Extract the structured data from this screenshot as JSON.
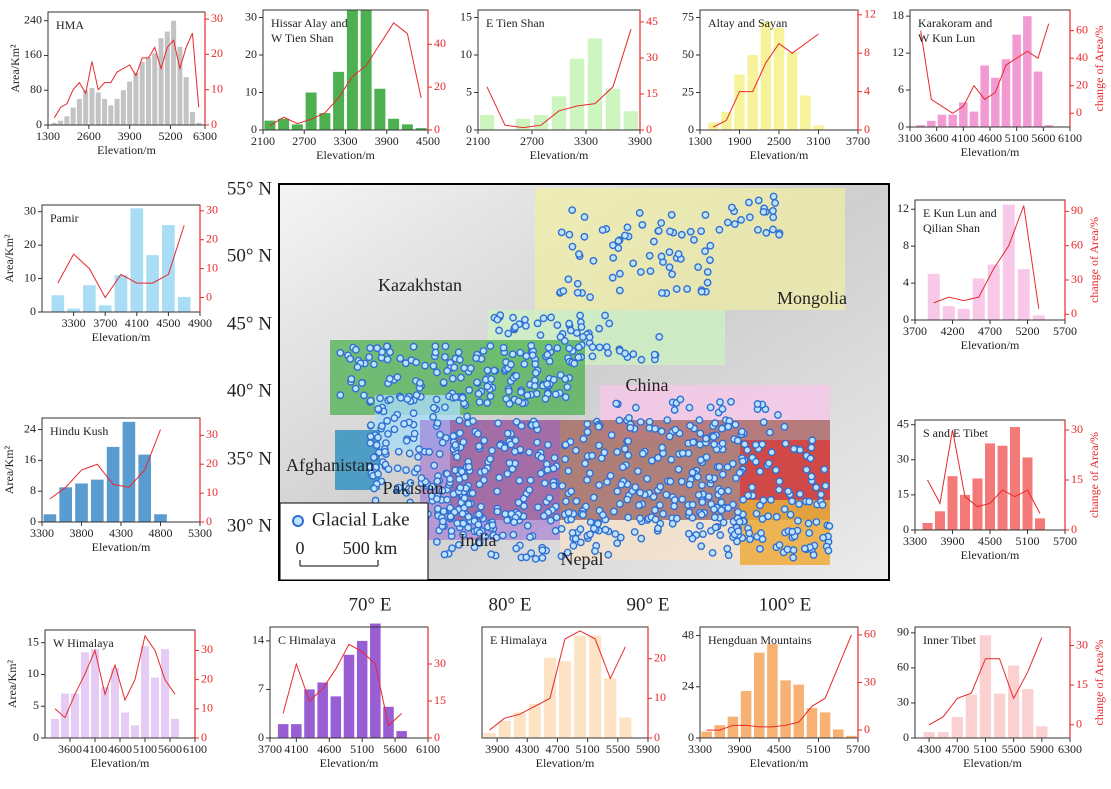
{
  "chart_data": [
    {
      "type": "bar_line",
      "title": [
        "HMA"
      ],
      "xlabel": "Elevation/m",
      "ylabel": "Area/Km²",
      "x": [
        1500,
        1700,
        1900,
        2100,
        2300,
        2500,
        2700,
        2900,
        3100,
        3300,
        3500,
        3700,
        3900,
        4100,
        4300,
        4500,
        4700,
        4900,
        5100,
        5300,
        5500,
        5700,
        5900,
        6100
      ],
      "xlim": [
        1300,
        6300
      ],
      "xticks": [
        1300,
        2600,
        3900,
        5200,
        6300
      ],
      "ylim": [
        0,
        260
      ],
      "yticks": [
        0,
        80,
        160,
        240
      ],
      "y2lim": [
        0,
        32
      ],
      "y2ticks": [
        0,
        10,
        20,
        30
      ],
      "series": [
        {
          "color": "#c3c3c3",
          "values": [
            5,
            10,
            20,
            40,
            60,
            80,
            85,
            75,
            60,
            45,
            60,
            80,
            100,
            120,
            145,
            155,
            165,
            200,
            215,
            240,
            180,
            110,
            30,
            5
          ]
        },
        {
          "color": "#e8292b",
          "axis": "y2",
          "values": [
            2,
            5,
            6,
            10,
            12,
            9,
            18,
            10,
            12,
            12,
            15,
            16,
            17,
            14,
            19,
            19,
            22,
            16,
            22,
            24,
            16,
            22,
            26,
            5
          ]
        }
      ]
    },
    {
      "type": "bar_line",
      "title": [
        "Hissar Alay and",
        "W Tien Shan"
      ],
      "xlabel": "Elevation/m",
      "x": [
        2200,
        2400,
        2600,
        2800,
        3000,
        3200,
        3400,
        3600,
        3800,
        4000,
        4200,
        4400
      ],
      "xlim": [
        2100,
        4500
      ],
      "xticks": [
        2100,
        2700,
        3300,
        3900,
        4500
      ],
      "ylim": [
        0,
        32
      ],
      "yticks": [
        0,
        10,
        20,
        30
      ],
      "y2lim": [
        0,
        56
      ],
      "y2ticks": [
        0,
        20,
        40
      ],
      "series": [
        {
          "color": "#4caf50",
          "values": [
            2.5,
            3,
            1.5,
            10,
            4.5,
            15.5,
            32,
            32,
            11,
            3,
            1.5,
            0.5
          ]
        },
        {
          "color": "#e8292b",
          "axis": "y2",
          "values": [
            2,
            6,
            3,
            5,
            8,
            15,
            25,
            30,
            40,
            50,
            45,
            15
          ]
        }
      ]
    },
    {
      "type": "bar_line",
      "title": [
        "E Tien Shan"
      ],
      "xlabel": "Elevation/m",
      "x": [
        2200,
        2400,
        2600,
        2800,
        3000,
        3200,
        3400,
        3600,
        3800
      ],
      "xlim": [
        2100,
        3900
      ],
      "xticks": [
        2100,
        2700,
        3300,
        3900
      ],
      "ylim": [
        0,
        16
      ],
      "yticks": [
        0,
        5,
        10,
        15
      ],
      "y2lim": [
        0,
        50
      ],
      "y2ticks": [
        0,
        15,
        30,
        45
      ],
      "series": [
        {
          "color": "#ccf5bf",
          "values": [
            2,
            0,
            1.5,
            2,
            4.5,
            9.5,
            12.2,
            5.5,
            2.5
          ]
        },
        {
          "color": "#e8292b",
          "axis": "y2",
          "values": [
            18,
            2,
            1,
            2,
            8,
            10,
            11,
            18,
            42
          ]
        }
      ]
    },
    {
      "type": "bar_line",
      "title": [
        "Altay and Sayan"
      ],
      "xlabel": "Elevation/m",
      "x": [
        1500,
        1700,
        1900,
        2100,
        2300,
        2500,
        2700,
        2900,
        3100
      ],
      "xlim": [
        1300,
        3700
      ],
      "xticks": [
        1300,
        1900,
        2500,
        3100,
        3700
      ],
      "ylim": [
        0,
        80
      ],
      "yticks": [
        0,
        25,
        50,
        75
      ],
      "y2lim": [
        0,
        12.5
      ],
      "y2ticks": [
        0,
        4,
        8,
        12
      ],
      "series": [
        {
          "color": "#f7f39a",
          "values": [
            5,
            12,
            37,
            50,
            72,
            68,
            52,
            23,
            3
          ]
        },
        {
          "color": "#e8292b",
          "axis": "y2",
          "values": [
            0.3,
            1,
            4,
            4,
            7,
            9,
            8,
            9,
            10
          ]
        }
      ]
    },
    {
      "type": "bar_line",
      "title": [
        "Karakoram and",
        "W Kun Lun"
      ],
      "xlabel": "Elevation/m",
      "y2label": "change of Area/%",
      "x": [
        3300,
        3500,
        3700,
        3900,
        4100,
        4300,
        4500,
        4700,
        4900,
        5100,
        5300,
        5500,
        5700
      ],
      "xlim": [
        3100,
        6100
      ],
      "xticks": [
        3100,
        3600,
        4100,
        4600,
        5100,
        5600,
        6100
      ],
      "ylim": [
        0,
        19
      ],
      "yticks": [
        0,
        6,
        12,
        18
      ],
      "y2lim": [
        -10,
        75
      ],
      "y2ticks": [
        0,
        20,
        40,
        60
      ],
      "series": [
        {
          "color": "#f29bd3",
          "values": [
            0.3,
            1,
            2,
            2,
            4,
            2.5,
            10,
            8,
            11,
            15,
            18,
            9,
            0.3
          ]
        },
        {
          "color": "#e8292b",
          "axis": "y2",
          "values": [
            60,
            10,
            5,
            0,
            5,
            20,
            10,
            15,
            35,
            40,
            45,
            40,
            65
          ]
        }
      ]
    },
    {
      "type": "bar_line",
      "title": [
        "Pamir"
      ],
      "xlabel": "Elevation/m",
      "ylabel": "Area/Km²",
      "x": [
        3100,
        3300,
        3500,
        3700,
        3900,
        4100,
        4300,
        4500,
        4700
      ],
      "xlim": [
        2900,
        4900
      ],
      "xticks": [
        3300,
        3700,
        4100,
        4500,
        4900
      ],
      "ylim": [
        0,
        32
      ],
      "yticks": [
        0,
        10,
        20,
        30
      ],
      "y2lim": [
        -5,
        32
      ],
      "y2ticks": [
        0,
        10,
        20,
        30
      ],
      "series": [
        {
          "color": "#a9dcf5",
          "values": [
            5,
            1,
            8,
            2,
            11,
            31,
            17,
            26,
            4.5
          ]
        },
        {
          "color": "#e8292b",
          "axis": "y2",
          "values": [
            5,
            15,
            10,
            0,
            8,
            5,
            5,
            8,
            25
          ]
        }
      ]
    },
    {
      "type": "bar_line",
      "title": [
        "E Kun Lun and",
        "Qilian Shan"
      ],
      "xlabel": "Elevation/m",
      "y2label": "change of Area/%",
      "x": [
        3950,
        4150,
        4350,
        4550,
        4750,
        4950,
        5150,
        5350
      ],
      "xlim": [
        3700,
        5700
      ],
      "xticks": [
        3700,
        4200,
        4700,
        5200,
        5700
      ],
      "ylim": [
        0,
        13
      ],
      "yticks": [
        0,
        4,
        8,
        12
      ],
      "y2lim": [
        -5,
        100
      ],
      "y2ticks": [
        0,
        30,
        60,
        90
      ],
      "series": [
        {
          "color": "#f8c8e8",
          "values": [
            5,
            1.5,
            1.2,
            4.5,
            6,
            12.5,
            5.5,
            0.5
          ]
        },
        {
          "color": "#e8292b",
          "axis": "y2",
          "values": [
            10,
            15,
            12,
            15,
            40,
            60,
            95,
            5
          ]
        }
      ]
    },
    {
      "type": "bar_line",
      "title": [
        "Hindu Kush"
      ],
      "xlabel": "Elevation/m",
      "ylabel": "Area/Km²",
      "x": [
        3400,
        3600,
        3800,
        4000,
        4200,
        4400,
        4600,
        4800
      ],
      "xlim": [
        3300,
        5300
      ],
      "xticks": [
        3300,
        3800,
        4300,
        4800,
        5300
      ],
      "ylim": [
        0,
        27
      ],
      "yticks": [
        0,
        8,
        16,
        24
      ],
      "y2lim": [
        0,
        36
      ],
      "y2ticks": [
        0,
        10,
        20,
        30
      ],
      "series": [
        {
          "color": "#5a9bd0",
          "values": [
            2,
            9,
            10,
            11,
            19.5,
            26,
            17.5,
            2
          ]
        },
        {
          "color": "#e8292b",
          "axis": "y2",
          "values": [
            8,
            12,
            18,
            20,
            13,
            12,
            18,
            32
          ]
        }
      ]
    },
    {
      "type": "bar_line",
      "title": [
        "S and E Tibet"
      ],
      "xlabel": "Elevation/m",
      "y2label": "change of Area/%",
      "x": [
        3500,
        3700,
        3900,
        4100,
        4300,
        4500,
        4700,
        4900,
        5100,
        5300
      ],
      "xlim": [
        3300,
        5700
      ],
      "xticks": [
        3300,
        3900,
        4500,
        5100,
        5700
      ],
      "ylim": [
        0,
        47
      ],
      "yticks": [
        0,
        15,
        30,
        45
      ],
      "y2lim": [
        0,
        33
      ],
      "y2ticks": [
        0,
        15,
        30
      ],
      "series": [
        {
          "color": "#f47a7a",
          "values": [
            3,
            8,
            23,
            15,
            22,
            37,
            36,
            44,
            31,
            5
          ]
        },
        {
          "color": "#e8292b",
          "axis": "y2",
          "values": [
            15,
            8,
            30,
            10,
            7,
            8,
            12,
            10,
            12,
            5
          ]
        }
      ]
    },
    {
      "type": "bar_line",
      "title": [
        "W Himalaya"
      ],
      "xlabel": "Elevation/m",
      "ylabel": "Area/Km²",
      "x": [
        3300,
        3500,
        3700,
        3900,
        4100,
        4300,
        4500,
        4700,
        4900,
        5100,
        5300,
        5500,
        5700
      ],
      "xlim": [
        3100,
        6100
      ],
      "xticks": [
        3600,
        4100,
        4600,
        5100,
        5600,
        6100
      ],
      "ylim": [
        0,
        17
      ],
      "yticks": [
        0,
        5,
        10,
        15
      ],
      "y2lim": [
        0,
        37
      ],
      "y2ticks": [
        0,
        10,
        20,
        30
      ],
      "series": [
        {
          "color": "#e6ccf5",
          "values": [
            3,
            7,
            7,
            13.5,
            14,
            8,
            11,
            4,
            2,
            14.5,
            9.5,
            14,
            3
          ]
        },
        {
          "color": "#e8292b",
          "axis": "y2",
          "values": [
            10,
            7,
            15,
            22,
            30,
            15,
            25,
            13,
            20,
            35,
            30,
            20,
            15
          ]
        }
      ]
    },
    {
      "type": "bar_line",
      "title": [
        "C Himalaya"
      ],
      "xlabel": "Elevation/m",
      "x": [
        3900,
        4100,
        4300,
        4500,
        4700,
        4900,
        5100,
        5300,
        5500,
        5700
      ],
      "xlim": [
        3700,
        6100
      ],
      "xticks": [
        3700,
        4100,
        4600,
        5100,
        5600,
        6100
      ],
      "ylim": [
        0,
        16
      ],
      "yticks": [
        0,
        7,
        14
      ],
      "y2lim": [
        0,
        45
      ],
      "y2ticks": [
        0,
        15,
        30
      ],
      "series": [
        {
          "color": "#9a5ed4",
          "values": [
            2,
            2,
            7,
            8,
            6,
            12,
            14,
            16.5,
            4.5,
            1
          ]
        },
        {
          "color": "#e8292b",
          "axis": "y2",
          "values": [
            10,
            30,
            15,
            20,
            28,
            38,
            35,
            30,
            5,
            10
          ]
        }
      ]
    },
    {
      "type": "bar_line",
      "title": [
        "E Himalaya"
      ],
      "xlabel": "Elevation/m",
      "x": [
        3800,
        4000,
        4200,
        4400,
        4600,
        4800,
        5000,
        5200,
        5400,
        5600
      ],
      "xlim": [
        3700,
        5900
      ],
      "xticks": [
        3900,
        4300,
        4700,
        5100,
        5500,
        5900
      ],
      "ylim": [
        0,
        65
      ],
      "y2lim": [
        0,
        28
      ],
      "y2ticks": [
        0,
        10,
        20
      ],
      "series": [
        {
          "color": "#fde3c4",
          "values": [
            3,
            10,
            15,
            20,
            47,
            45,
            60,
            60,
            35,
            12
          ]
        },
        {
          "color": "#e8292b",
          "axis": "y2",
          "values": [
            2,
            5,
            6,
            8,
            10,
            25,
            27,
            25,
            15,
            23
          ]
        }
      ]
    },
    {
      "type": "bar_line",
      "title": [
        "Hengduan Mountains"
      ],
      "xlabel": "Elevation/m",
      "x": [
        3400,
        3600,
        3800,
        4000,
        4200,
        4400,
        4600,
        4800,
        5000,
        5200,
        5400,
        5600
      ],
      "xlim": [
        3300,
        5700
      ],
      "xticks": [
        3300,
        3900,
        4500,
        5100,
        5700
      ],
      "ylim": [
        0,
        52
      ],
      "yticks": [
        0,
        24,
        48
      ],
      "y2lim": [
        -5,
        65
      ],
      "y2ticks": [
        0,
        30,
        60
      ],
      "series": [
        {
          "color": "#f7b173",
          "values": [
            3,
            6,
            10,
            22,
            40,
            44,
            27,
            25,
            14,
            12,
            4,
            1
          ]
        },
        {
          "color": "#e8292b",
          "axis": "y2",
          "values": [
            0,
            0,
            3,
            3,
            2,
            2,
            3,
            5,
            15,
            20,
            40,
            60
          ]
        }
      ]
    },
    {
      "type": "bar_line",
      "title": [
        "Inner Tibet"
      ],
      "xlabel": "Elevation/m",
      "y2label": "change of Area/%",
      "x": [
        4300,
        4500,
        4700,
        4900,
        5100,
        5300,
        5500,
        5700,
        5900
      ],
      "xlim": [
        4100,
        6300
      ],
      "xticks": [
        4300,
        4700,
        5100,
        5500,
        5900,
        6300
      ],
      "ylim": [
        0,
        95
      ],
      "yticks": [
        0,
        30,
        60,
        90
      ],
      "y2lim": [
        -5,
        37
      ],
      "y2ticks": [
        0,
        15,
        30
      ],
      "series": [
        {
          "color": "#fbd0d0",
          "values": [
            5,
            5,
            18,
            37,
            88,
            38,
            62,
            42,
            10
          ]
        },
        {
          "color": "#e8292b",
          "axis": "y2",
          "values": [
            0,
            3,
            10,
            12,
            25,
            25,
            10,
            20,
            33
          ]
        }
      ]
    }
  ],
  "map": {
    "lat_labels": [
      "55° N",
      "50° N",
      "45° N",
      "40° N",
      "35° N",
      "30° N"
    ],
    "lon_labels": [
      "70° E",
      "80° E",
      "90° E",
      "100° E"
    ],
    "places": [
      "Kazakhstan",
      "Mongolia",
      "China",
      "Afghanistan",
      "Pakistan",
      "India",
      "Nepal"
    ],
    "legend": "Glacial Lake",
    "scale": [
      "0",
      "500 km"
    ]
  }
}
